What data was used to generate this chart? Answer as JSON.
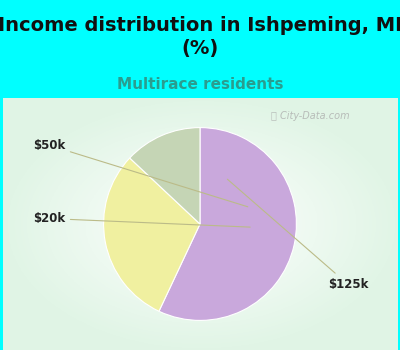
{
  "title": "Income distribution in Ishpeming, MI\n(%)",
  "subtitle": "Multirace residents",
  "title_fontsize": 14,
  "subtitle_fontsize": 11,
  "title_color": "#111111",
  "subtitle_color": "#2a9d8f",
  "top_bg_color": "#00FFFF",
  "slices": [
    57,
    30,
    13
  ],
  "labels": [
    "$125k",
    "$50k",
    "$20k"
  ],
  "colors": [
    "#C9A8DC",
    "#F0F0A0",
    "#C5D5B5"
  ],
  "startangle": 90,
  "watermark": "ⓘ City-Data.com"
}
